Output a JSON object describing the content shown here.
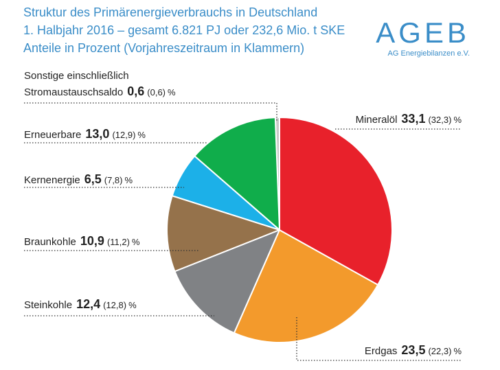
{
  "chart_data": {
    "type": "pie",
    "title": "Struktur des Primärenergieverbrauchs in Deutschland",
    "subtitle": "1. Halbjahr 2016 – gesamt 6.821 PJ oder 232,6 Mio. t SKE",
    "note": "Anteile in Prozent (Vorjahreszeitraum in Klammern)",
    "categories": [
      "Mineralöl",
      "Erdgas",
      "Steinkohle",
      "Braunkohle",
      "Kernenergie",
      "Erneuerbare",
      "Sonstige einschließlich Stromaustauschsaldo"
    ],
    "values": [
      33.1,
      23.5,
      12.4,
      10.9,
      6.5,
      13.0,
      0.6
    ],
    "value_labels": [
      "33,1",
      "23,5",
      "12,4",
      "10,9",
      "6,5",
      "13,0",
      "0,6"
    ],
    "previous_labels": [
      "(32,3)",
      "(22,3)",
      "(12,8)",
      "(11,2)",
      "(7,8)",
      "(12,9)",
      "(0,6)"
    ],
    "unit": "%",
    "colors": [
      "#e8212b",
      "#f39a2c",
      "#808285",
      "#95724b",
      "#1cb0e8",
      "#10ad4b",
      "#c9c9c9"
    ]
  },
  "logo": {
    "name": "AGEB",
    "caption": "AG Energiebilanzen e.V."
  }
}
